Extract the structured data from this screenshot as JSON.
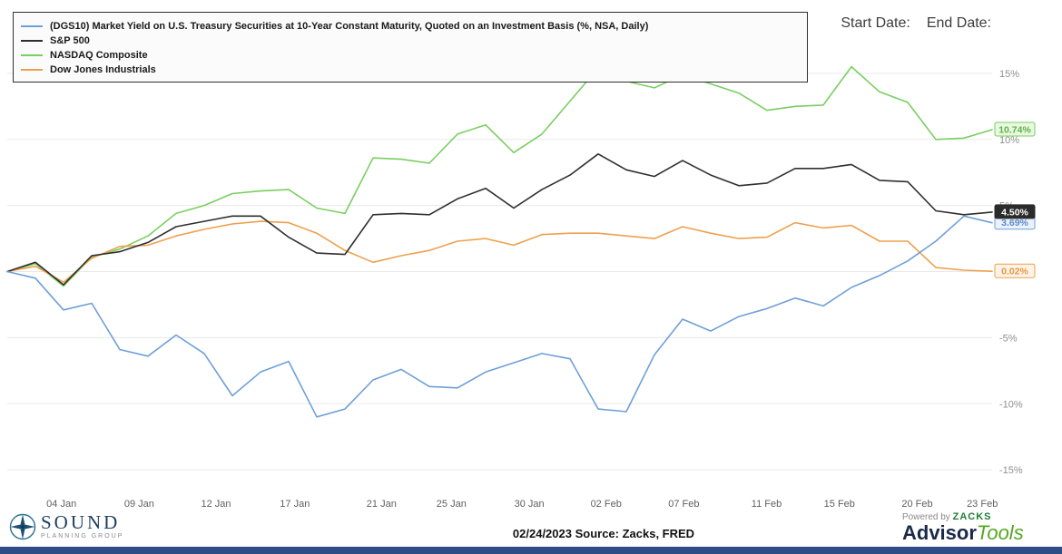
{
  "header": {
    "start_date_label": "Start Date:",
    "end_date_label": "End Date:"
  },
  "chart_data": {
    "type": "line",
    "title": "",
    "ylim": [
      -16.5,
      20
    ],
    "grid_values": [
      15,
      10,
      5,
      0,
      -5,
      -10,
      -15
    ],
    "y_ticks": [
      {
        "value": 15,
        "label": "15%"
      },
      {
        "value": 10,
        "label": "10%"
      },
      {
        "value": 5,
        "label": "5%"
      },
      {
        "value": -5,
        "label": "-5%"
      },
      {
        "value": -10,
        "label": "-10%"
      },
      {
        "value": -15,
        "label": "-15%"
      }
    ],
    "x_labels": [
      {
        "text": "04 Jan",
        "pos": 0.055
      },
      {
        "text": "09 Jan",
        "pos": 0.134
      },
      {
        "text": "12 Jan",
        "pos": 0.212
      },
      {
        "text": "17 Jan",
        "pos": 0.292
      },
      {
        "text": "21 Jan",
        "pos": 0.38
      },
      {
        "text": "25 Jan",
        "pos": 0.451
      },
      {
        "text": "30 Jan",
        "pos": 0.53
      },
      {
        "text": "02 Feb",
        "pos": 0.608
      },
      {
        "text": "07 Feb",
        "pos": 0.687
      },
      {
        "text": "11 Feb",
        "pos": 0.771
      },
      {
        "text": "15 Feb",
        "pos": 0.845
      },
      {
        "text": "20 Feb",
        "pos": 0.924
      },
      {
        "text": "23 Feb",
        "pos": 0.99
      }
    ],
    "dates": [
      "03 Jan",
      "04 Jan",
      "05 Jan",
      "06 Jan",
      "09 Jan",
      "10 Jan",
      "11 Jan",
      "12 Jan",
      "13 Jan",
      "17 Jan",
      "18 Jan",
      "19 Jan",
      "20 Jan",
      "23 Jan",
      "24 Jan",
      "25 Jan",
      "26 Jan",
      "27 Jan",
      "30 Jan",
      "31 Jan",
      "01 Feb",
      "02 Feb",
      "03 Feb",
      "06 Feb",
      "07 Feb",
      "08 Feb",
      "09 Feb",
      "10 Feb",
      "13 Feb",
      "14 Feb",
      "15 Feb",
      "16 Feb",
      "17 Feb",
      "21 Feb",
      "22 Feb",
      "23 Feb"
    ],
    "series": [
      {
        "name": "(DGS10) Market Yield on U.S. Treasury Securities at 10-Year Constant Maturity, Quoted on an Investment Basis (%, NSA, Daily)",
        "color": "#6f9fd8",
        "end_label": "3.69%",
        "chip": {
          "bg": "#eaf1fa",
          "border": "#6f9fd8",
          "text_color": "#5b8cc8"
        },
        "values": [
          0,
          -0.5,
          -2.9,
          -2.4,
          -5.9,
          -6.4,
          -4.8,
          -6.2,
          -9.4,
          -7.6,
          -6.8,
          -11.0,
          -10.4,
          -8.2,
          -7.4,
          -8.7,
          -8.8,
          -7.6,
          -6.9,
          -6.2,
          -6.6,
          -10.4,
          -10.6,
          -6.3,
          -3.6,
          -4.5,
          -3.4,
          -2.8,
          -2.0,
          -2.6,
          -1.2,
          -0.3,
          0.8,
          2.3,
          4.2,
          3.69
        ]
      },
      {
        "name": "S&P 500",
        "color": "#2f2f2f",
        "end_label": "4.50%",
        "chip": {
          "bg": "#2b2b2b",
          "border": "#2b2b2b",
          "text_color": "#ffffff"
        },
        "values": [
          0,
          0.7,
          -1.0,
          1.2,
          1.5,
          2.2,
          3.4,
          3.8,
          4.2,
          4.2,
          2.6,
          1.4,
          1.3,
          4.3,
          4.4,
          4.3,
          5.5,
          6.3,
          4.8,
          6.2,
          7.3,
          8.9,
          7.7,
          7.2,
          8.4,
          7.3,
          6.5,
          6.7,
          7.8,
          7.8,
          8.1,
          6.9,
          6.8,
          4.6,
          4.3,
          4.5
        ]
      },
      {
        "name": "NASDAQ Composite",
        "color": "#79cf60",
        "end_label": "10.74%",
        "chip": {
          "bg": "#e9f7e3",
          "border": "#79cf60",
          "text_color": "#5cb53e"
        },
        "values": [
          0,
          0.6,
          -1.1,
          1.1,
          1.7,
          2.7,
          4.4,
          5.0,
          5.9,
          6.1,
          6.2,
          4.8,
          4.4,
          8.6,
          8.5,
          8.2,
          10.4,
          11.1,
          9.0,
          10.4,
          12.9,
          15.4,
          14.4,
          13.9,
          14.9,
          14.2,
          13.5,
          12.2,
          12.5,
          12.6,
          15.5,
          13.6,
          12.8,
          10.0,
          10.1,
          10.74
        ]
      },
      {
        "name": "Dow Jones Industrials",
        "color": "#efa04e",
        "end_label": "0.02%",
        "chip": {
          "bg": "#fdf3e7",
          "border": "#efa04e",
          "text_color": "#e8963f"
        },
        "values": [
          0,
          0.4,
          -0.8,
          1.0,
          1.9,
          2.0,
          2.7,
          3.2,
          3.6,
          3.8,
          3.7,
          2.9,
          1.6,
          0.7,
          1.2,
          1.6,
          2.3,
          2.5,
          2.0,
          2.8,
          2.9,
          2.9,
          2.7,
          2.5,
          3.4,
          2.9,
          2.5,
          2.6,
          3.7,
          3.3,
          3.5,
          2.3,
          2.3,
          0.3,
          0.1,
          0.02
        ]
      }
    ]
  },
  "footer": {
    "date_source": "02/24/2023 Source: Zacks, FRED",
    "powered_by": "Powered by",
    "zacks": "ZACKS",
    "advisor": "Advisor",
    "tools": "Tools",
    "accent_bar_color": "#2e4d86",
    "logo": {
      "line1": "SOUND",
      "line2": "PLANNING GROUP"
    }
  }
}
